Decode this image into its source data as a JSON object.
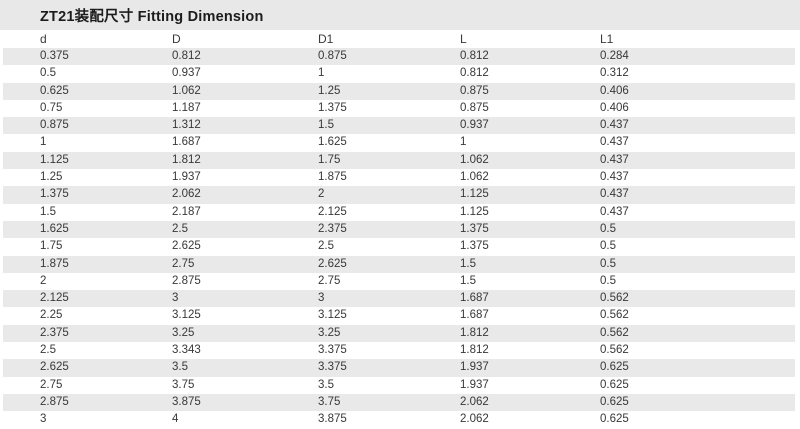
{
  "title": "ZT21装配尺寸 Fitting Dimension",
  "colors": {
    "title_band_bg": "#e8e8e8",
    "stripe_bg": "#e9e9e9",
    "row_bg": "#ffffff",
    "text": "#383838",
    "title_text": "#1c1c1c"
  },
  "table": {
    "columns": [
      "d",
      "D",
      "D1",
      "L",
      "L1"
    ],
    "rows": [
      [
        "0.375",
        "0.812",
        "0.875",
        "0.812",
        "0.284"
      ],
      [
        "0.5",
        "0.937",
        "1",
        "0.812",
        "0.312"
      ],
      [
        "0.625",
        "1.062",
        "1.25",
        "0.875",
        "0.406"
      ],
      [
        "0.75",
        "1.187",
        "1.375",
        "0.875",
        "0.406"
      ],
      [
        "0.875",
        "1.312",
        "1.5",
        "0.937",
        "0.437"
      ],
      [
        "1",
        "1.687",
        "1.625",
        "1",
        "0.437"
      ],
      [
        "1.125",
        "1.812",
        "1.75",
        "1.062",
        "0.437"
      ],
      [
        "1.25",
        "1.937",
        "1.875",
        "1.062",
        "0.437"
      ],
      [
        "1.375",
        "2.062",
        "2",
        "1.125",
        "0.437"
      ],
      [
        "1.5",
        "2.187",
        "2.125",
        "1.125",
        "0.437"
      ],
      [
        "1.625",
        "2.5",
        "2.375",
        "1.375",
        "0.5"
      ],
      [
        "1.75",
        "2.625",
        "2.5",
        "1.375",
        "0.5"
      ],
      [
        "1.875",
        "2.75",
        "2.625",
        "1.5",
        "0.5"
      ],
      [
        "2",
        "2.875",
        "2.75",
        "1.5",
        "0.5"
      ],
      [
        "2.125",
        "3",
        "3",
        "1.687",
        "0.562"
      ],
      [
        "2.25",
        "3.125",
        "3.125",
        "1.687",
        "0.562"
      ],
      [
        "2.375",
        "3.25",
        "3.25",
        "1.812",
        "0.562"
      ],
      [
        "2.5",
        "3.343",
        "3.375",
        "1.812",
        "0.562"
      ],
      [
        "2.625",
        "3.5",
        "3.375",
        "1.937",
        "0.625"
      ],
      [
        "2.75",
        "3.75",
        "3.5",
        "1.937",
        "0.625"
      ],
      [
        "2.875",
        "3.875",
        "3.75",
        "2.062",
        "0.625"
      ],
      [
        "3",
        "4",
        "3.875",
        "2.062",
        "0.625"
      ]
    ]
  },
  "chart_data": {
    "type": "table",
    "title": "ZT21装配尺寸 Fitting Dimension",
    "columns": [
      "d",
      "D",
      "D1",
      "L",
      "L1"
    ],
    "rows": [
      [
        0.375,
        0.812,
        0.875,
        0.812,
        0.284
      ],
      [
        0.5,
        0.937,
        1,
        0.812,
        0.312
      ],
      [
        0.625,
        1.062,
        1.25,
        0.875,
        0.406
      ],
      [
        0.75,
        1.187,
        1.375,
        0.875,
        0.406
      ],
      [
        0.875,
        1.312,
        1.5,
        0.937,
        0.437
      ],
      [
        1,
        1.687,
        1.625,
        1,
        0.437
      ],
      [
        1.125,
        1.812,
        1.75,
        1.062,
        0.437
      ],
      [
        1.25,
        1.937,
        1.875,
        1.062,
        0.437
      ],
      [
        1.375,
        2.062,
        2,
        1.125,
        0.437
      ],
      [
        1.5,
        2.187,
        2.125,
        1.125,
        0.437
      ],
      [
        1.625,
        2.5,
        2.375,
        1.375,
        0.5
      ],
      [
        1.75,
        2.625,
        2.5,
        1.375,
        0.5
      ],
      [
        1.875,
        2.75,
        2.625,
        1.5,
        0.5
      ],
      [
        2,
        2.875,
        2.75,
        1.5,
        0.5
      ],
      [
        2.125,
        3,
        3,
        1.687,
        0.562
      ],
      [
        2.25,
        3.125,
        3.125,
        1.687,
        0.562
      ],
      [
        2.375,
        3.25,
        3.25,
        1.812,
        0.562
      ],
      [
        2.5,
        3.343,
        3.375,
        1.812,
        0.562
      ],
      [
        2.625,
        3.5,
        3.375,
        1.937,
        0.625
      ],
      [
        2.75,
        3.75,
        3.5,
        1.937,
        0.625
      ],
      [
        2.875,
        3.875,
        3.75,
        2.062,
        0.625
      ],
      [
        3,
        4,
        3.875,
        2.062,
        0.625
      ]
    ]
  }
}
